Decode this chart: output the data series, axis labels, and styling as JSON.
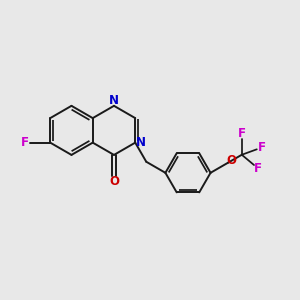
{
  "background_color": "#e8e8e8",
  "bond_color": "#1a1a1a",
  "bond_width": 1.4,
  "N_color": "#0000cc",
  "O_color": "#cc0000",
  "F_color": "#cc00cc",
  "figsize": [
    3.0,
    3.0
  ],
  "dpi": 100,
  "xlim": [
    0,
    12
  ],
  "ylim": [
    0,
    10
  ]
}
